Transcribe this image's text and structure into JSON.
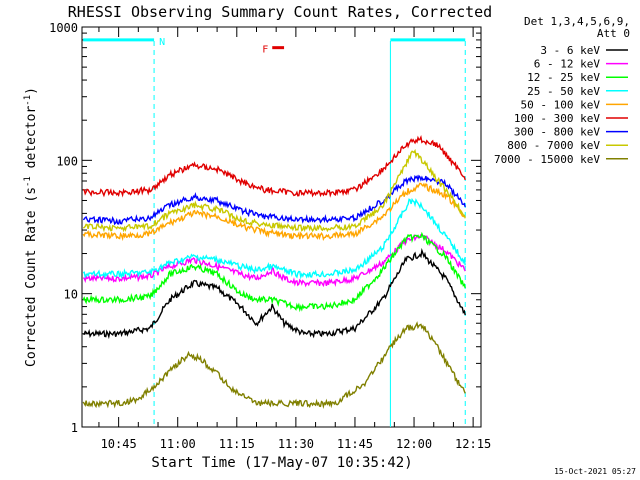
{
  "chart_data": {
    "type": "line",
    "title": "RHESSI Observing Summary Count Rates, Corrected",
    "xlabel": "Start Time (17-May-07 10:35:42)",
    "ylabel": "Corrected Count Rate (s",
    "ylabel_sup1": "-1",
    "ylabel_mid": " detector",
    "ylabel_sup2": "-1",
    "ylabel_end": ")",
    "y_scale": "log",
    "ylim": [
      1,
      1000
    ],
    "xlim": [
      "10:35:42",
      "12:17"
    ],
    "x_ticks": [
      "10:45",
      "11:00",
      "11:15",
      "11:30",
      "11:45",
      "12:00",
      "12:15"
    ],
    "y_tick_labels": [
      "1",
      "10",
      "100",
      "1000"
    ],
    "legend_header": [
      "Det 1,3,4,5,6,9,",
      "Att 0"
    ],
    "legend_position": "right",
    "timestamp": "15-Oct-2021 05:27",
    "flags": [
      {
        "label": "N",
        "color": "#00ffff",
        "level": 800,
        "start": "10:36",
        "end": "10:54"
      },
      {
        "label": "",
        "color": "#00ffff",
        "level": 800,
        "start": "11:54",
        "end": "12:13"
      },
      {
        "label": "F",
        "color": "#e00000",
        "level": 700,
        "start": "11:24",
        "end": "11:27"
      }
    ],
    "vlines": [
      {
        "time": "10:54",
        "style": "dashed"
      },
      {
        "time": "11:54",
        "style": "solid"
      },
      {
        "time": "12:13",
        "style": "dashed"
      }
    ],
    "series": [
      {
        "name": "3 - 6 keV",
        "color": "#000000",
        "points": [
          [
            "10:36",
            5
          ],
          [
            "10:45",
            5
          ],
          [
            "10:53",
            5.5
          ],
          [
            "10:58",
            9
          ],
          [
            "11:04",
            12
          ],
          [
            "11:10",
            11
          ],
          [
            "11:16",
            8
          ],
          [
            "11:20",
            6
          ],
          [
            "11:24",
            8
          ],
          [
            "11:27",
            6
          ],
          [
            "11:32",
            5
          ],
          [
            "11:38",
            5
          ],
          [
            "11:45",
            5.5
          ],
          [
            "11:52",
            9
          ],
          [
            "11:58",
            18
          ],
          [
            "12:02",
            20
          ],
          [
            "12:08",
            13
          ],
          [
            "12:13",
            7
          ]
        ]
      },
      {
        "name": "6 - 12 keV",
        "color": "#ff00ff",
        "points": [
          [
            "10:36",
            13
          ],
          [
            "10:45",
            13
          ],
          [
            "10:53",
            13.5
          ],
          [
            "10:58",
            16
          ],
          [
            "11:04",
            18
          ],
          [
            "11:10",
            16
          ],
          [
            "11:16",
            14
          ],
          [
            "11:20",
            13
          ],
          [
            "11:24",
            15
          ],
          [
            "11:26",
            13.5
          ],
          [
            "11:30",
            12
          ],
          [
            "11:38",
            12
          ],
          [
            "11:45",
            13
          ],
          [
            "11:52",
            17
          ],
          [
            "11:58",
            25
          ],
          [
            "12:02",
            27
          ],
          [
            "12:08",
            21
          ],
          [
            "12:13",
            15
          ]
        ]
      },
      {
        "name": "12 - 25 keV",
        "color": "#00ff00",
        "points": [
          [
            "10:36",
            9
          ],
          [
            "10:45",
            9
          ],
          [
            "10:53",
            9.5
          ],
          [
            "10:58",
            14
          ],
          [
            "11:04",
            16
          ],
          [
            "11:10",
            14
          ],
          [
            "11:16",
            10
          ],
          [
            "11:20",
            9
          ],
          [
            "11:24",
            9
          ],
          [
            "11:30",
            8
          ],
          [
            "11:38",
            8
          ],
          [
            "11:45",
            9
          ],
          [
            "11:52",
            15
          ],
          [
            "11:58",
            26
          ],
          [
            "12:02",
            27
          ],
          [
            "12:08",
            19
          ],
          [
            "12:13",
            11
          ]
        ]
      },
      {
        "name": "25 - 50 keV",
        "color": "#00ffff",
        "points": [
          [
            "10:36",
            14
          ],
          [
            "10:45",
            14
          ],
          [
            "10:53",
            14.5
          ],
          [
            "10:58",
            17
          ],
          [
            "11:04",
            19
          ],
          [
            "11:10",
            18
          ],
          [
            "11:16",
            16
          ],
          [
            "11:20",
            15
          ],
          [
            "11:24",
            16
          ],
          [
            "11:30",
            14
          ],
          [
            "11:38",
            14
          ],
          [
            "11:45",
            15
          ],
          [
            "11:52",
            22
          ],
          [
            "11:56",
            35
          ],
          [
            "11:59",
            50
          ],
          [
            "12:02",
            46
          ],
          [
            "12:08",
            27
          ],
          [
            "12:13",
            17
          ]
        ]
      },
      {
        "name": "50 - 100 keV",
        "color": "#ffa500",
        "points": [
          [
            "10:36",
            28
          ],
          [
            "10:45",
            27
          ],
          [
            "10:53",
            28
          ],
          [
            "10:58",
            34
          ],
          [
            "11:04",
            40
          ],
          [
            "11:10",
            38
          ],
          [
            "11:16",
            32
          ],
          [
            "11:22",
            29
          ],
          [
            "11:30",
            27
          ],
          [
            "11:38",
            27
          ],
          [
            "11:45",
            28
          ],
          [
            "11:52",
            38
          ],
          [
            "11:58",
            58
          ],
          [
            "12:02",
            65
          ],
          [
            "12:08",
            55
          ],
          [
            "12:13",
            38
          ]
        ]
      },
      {
        "name": "100 - 300 keV",
        "color": "#e00000",
        "points": [
          [
            "10:36",
            58
          ],
          [
            "10:45",
            57
          ],
          [
            "10:53",
            60
          ],
          [
            "10:58",
            78
          ],
          [
            "11:04",
            92
          ],
          [
            "11:10",
            86
          ],
          [
            "11:16",
            70
          ],
          [
            "11:22",
            60
          ],
          [
            "11:30",
            57
          ],
          [
            "11:38",
            57
          ],
          [
            "11:45",
            60
          ],
          [
            "11:52",
            85
          ],
          [
            "11:58",
            130
          ],
          [
            "12:01",
            145
          ],
          [
            "12:06",
            130
          ],
          [
            "12:13",
            75
          ]
        ]
      },
      {
        "name": "300 - 800 keV",
        "color": "#0000ff",
        "points": [
          [
            "10:36",
            36
          ],
          [
            "10:45",
            35
          ],
          [
            "10:53",
            37
          ],
          [
            "10:58",
            46
          ],
          [
            "11:04",
            53
          ],
          [
            "11:10",
            50
          ],
          [
            "11:16",
            42
          ],
          [
            "11:22",
            38
          ],
          [
            "11:30",
            36
          ],
          [
            "11:38",
            36
          ],
          [
            "11:45",
            37
          ],
          [
            "11:52",
            50
          ],
          [
            "11:58",
            70
          ],
          [
            "12:02",
            74
          ],
          [
            "12:08",
            68
          ],
          [
            "12:13",
            45
          ]
        ]
      },
      {
        "name": "800 - 7000 keV",
        "color": "#c8c800",
        "points": [
          [
            "10:36",
            32
          ],
          [
            "10:45",
            31
          ],
          [
            "10:53",
            32
          ],
          [
            "10:58",
            40
          ],
          [
            "11:04",
            46
          ],
          [
            "11:10",
            43
          ],
          [
            "11:16",
            36
          ],
          [
            "11:22",
            33
          ],
          [
            "11:30",
            31
          ],
          [
            "11:38",
            31
          ],
          [
            "11:45",
            32
          ],
          [
            "11:52",
            45
          ],
          [
            "11:58",
            95
          ],
          [
            "12:00",
            118
          ],
          [
            "12:03",
            92
          ],
          [
            "12:08",
            60
          ],
          [
            "12:13",
            38
          ]
        ]
      },
      {
        "name": "7000 - 15000 keV",
        "color": "#808000",
        "points": [
          [
            "10:36",
            1.5
          ],
          [
            "10:44",
            1.5
          ],
          [
            "10:50",
            1.6
          ],
          [
            "10:56",
            2.3
          ],
          [
            "11:00",
            3
          ],
          [
            "11:03",
            3.5
          ],
          [
            "11:06",
            3.2
          ],
          [
            "11:10",
            2.5
          ],
          [
            "11:14",
            1.9
          ],
          [
            "11:20",
            1.5
          ],
          [
            "11:30",
            1.5
          ],
          [
            "11:40",
            1.5
          ],
          [
            "11:48",
            2.2
          ],
          [
            "11:54",
            4
          ],
          [
            "11:58",
            5.5
          ],
          [
            "12:02",
            5.8
          ],
          [
            "12:06",
            4
          ],
          [
            "12:10",
            2.5
          ],
          [
            "12:13",
            1.8
          ]
        ]
      }
    ]
  }
}
